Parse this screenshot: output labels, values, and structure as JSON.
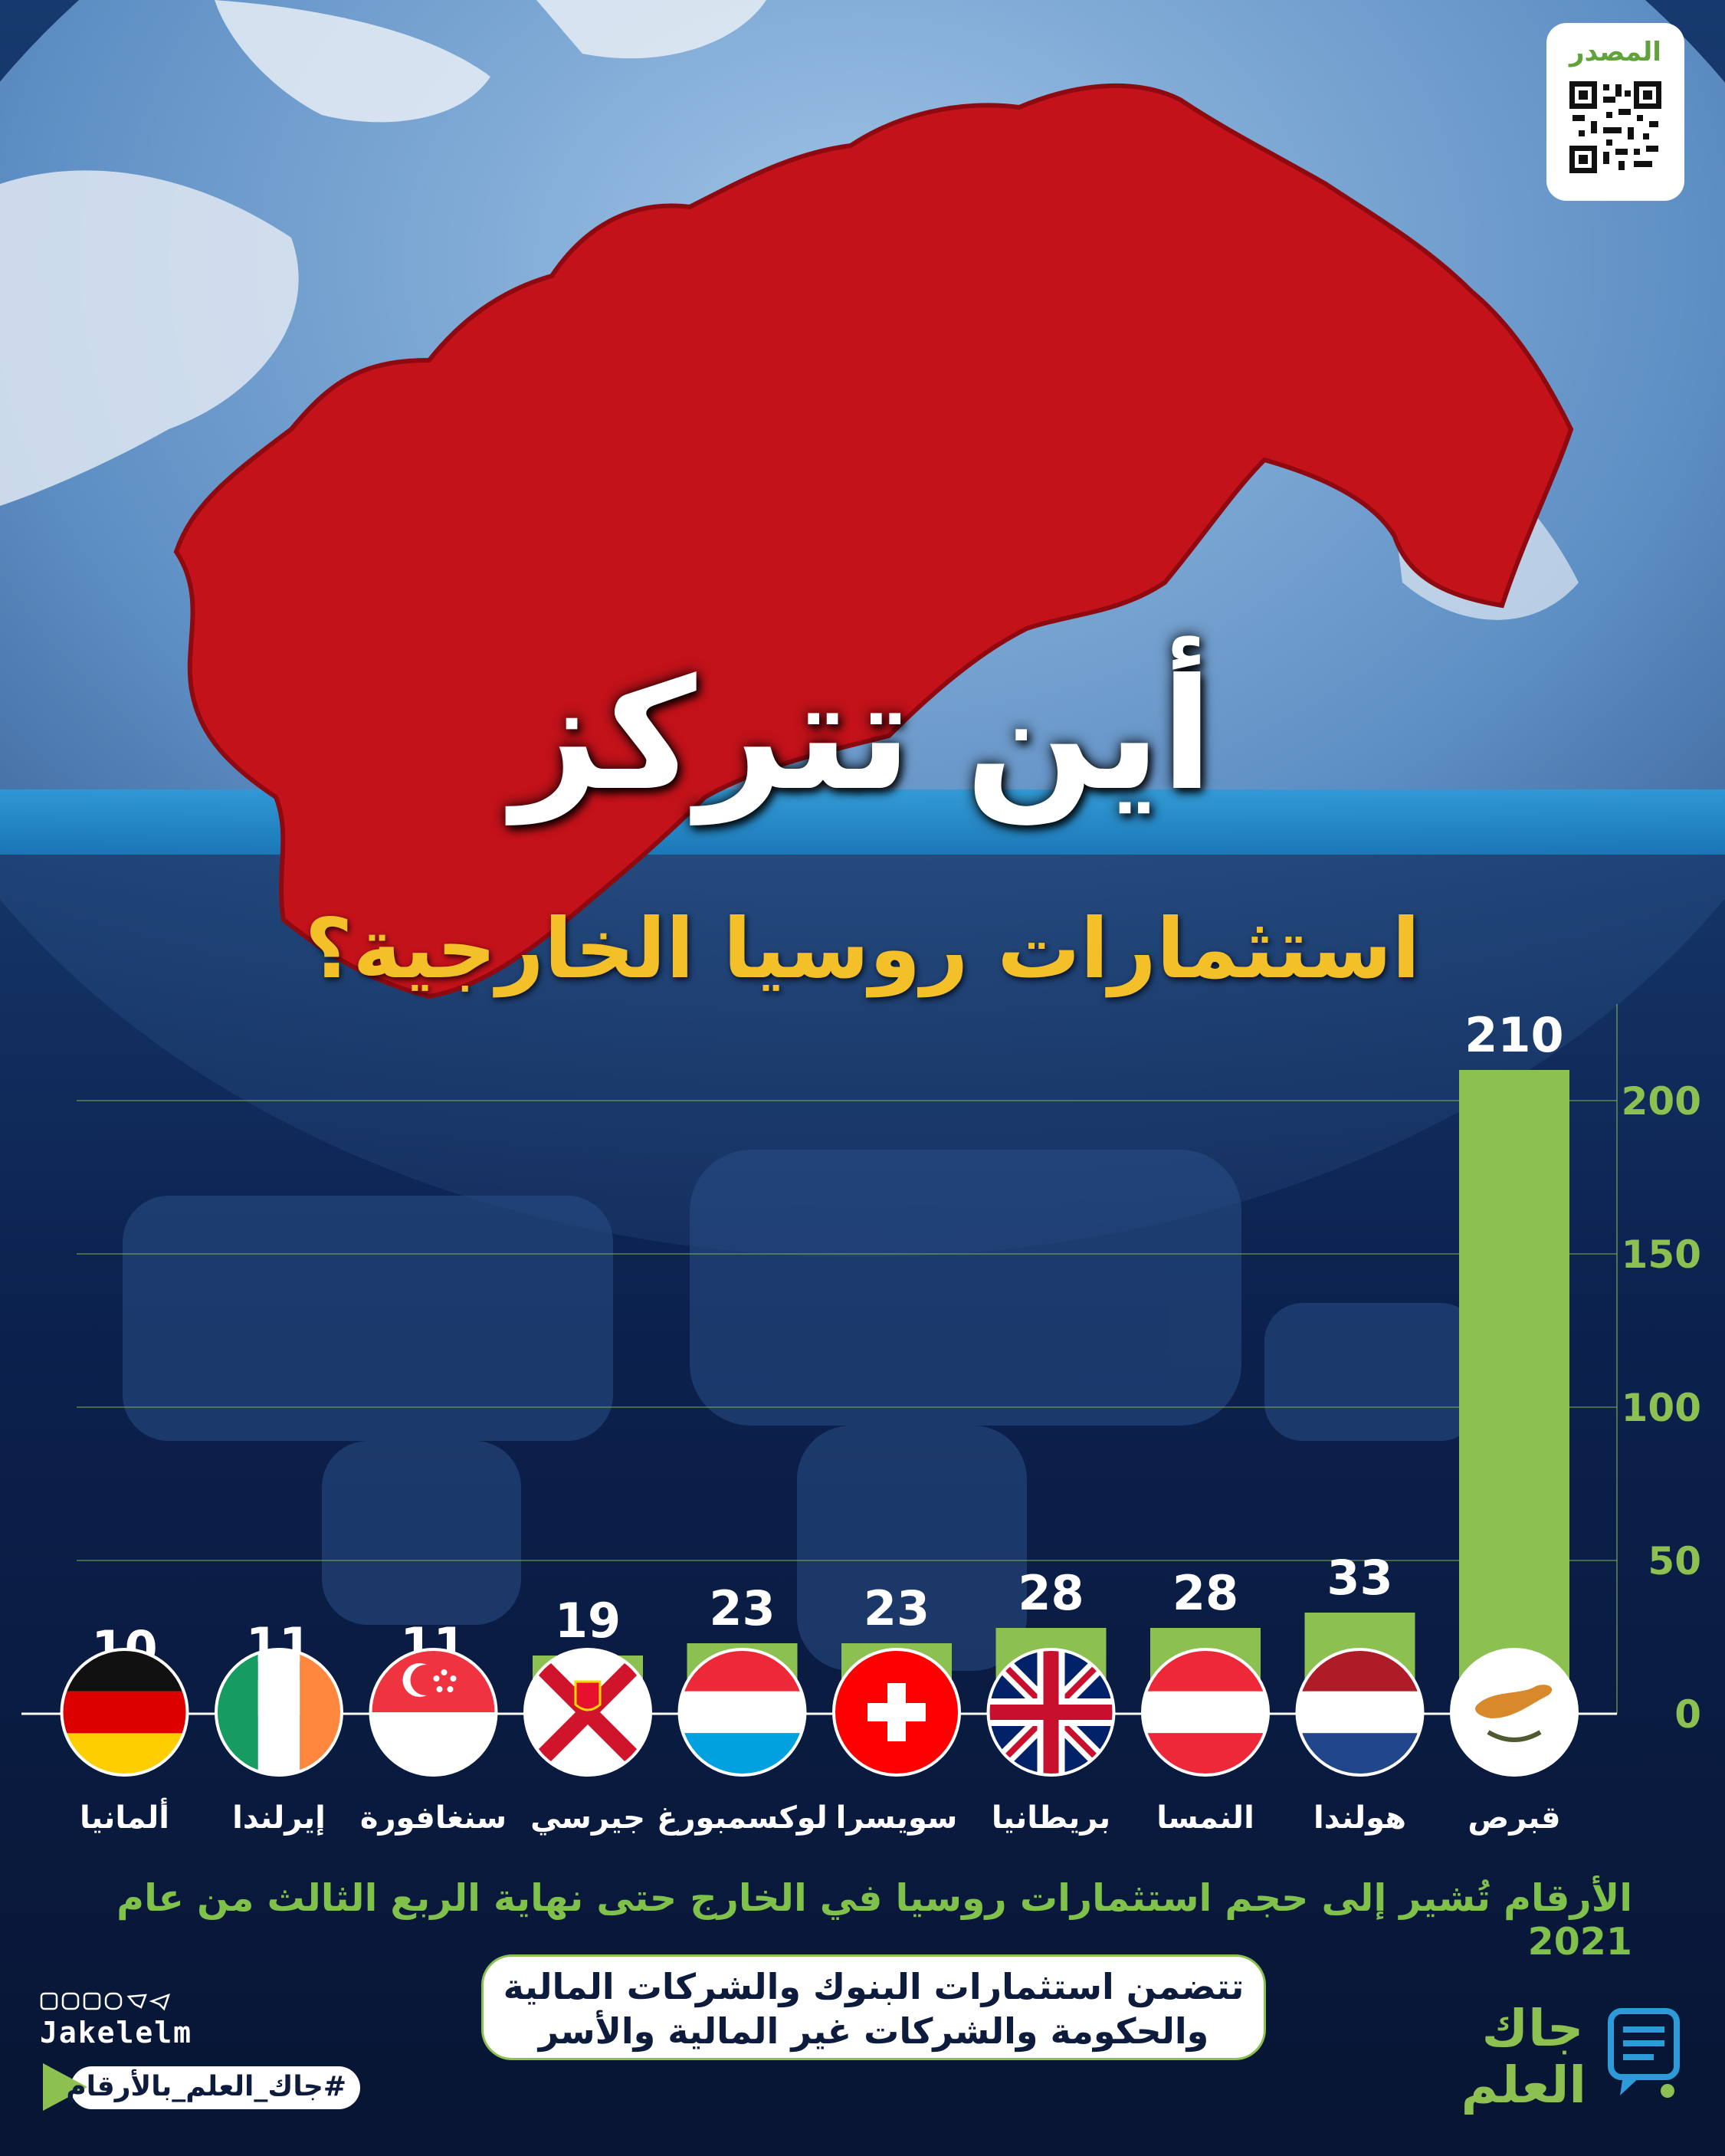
{
  "source": {
    "label": "المصدر"
  },
  "title": {
    "line1": "أين تتركز",
    "line2": "استثمارات روسيا الخارجية؟"
  },
  "chart_data": {
    "type": "bar",
    "categories": [
      "قبرص",
      "هولندا",
      "النمسا",
      "بريطانيا",
      "سويسرا",
      "لوكسمبورغ",
      "جيرسي",
      "سنغافورة",
      "إيرلندا",
      "ألمانيا"
    ],
    "values": [
      210,
      33,
      28,
      28,
      23,
      23,
      19,
      11,
      11,
      10
    ],
    "value_labels": [
      "210",
      "33",
      "28",
      "28",
      "23",
      "23",
      "19",
      "11",
      "11",
      "10"
    ],
    "y_ticks": [
      0,
      50,
      100,
      150,
      200
    ],
    "y_tick_labels": [
      "0",
      "50",
      "100",
      "150",
      "200"
    ],
    "ylim": [
      0,
      210
    ],
    "axis_position": "right",
    "grid": true,
    "bar_color": "#8cc152",
    "flags": [
      "cyprus",
      "netherlands",
      "austria",
      "united-kingdom",
      "switzerland",
      "luxembourg",
      "jersey",
      "singapore",
      "ireland",
      "germany"
    ]
  },
  "note": "الأرقام تُشير إلى حجم استثمارات روسيا في الخارج حتى نهاية الربع الثالث من عام 2021",
  "pill": {
    "line1": "تتضمن استثمارات البنوك والشركات المالية",
    "line2": "والحكومة والشركات غير المالية والأسر"
  },
  "footer": {
    "handle": "Jakelelm",
    "hashtag": "#جاك_العلم_بالأرقام",
    "brand_line1": "جاك",
    "brand_line2": "العلم"
  },
  "colors": {
    "accent_green": "#8cc152",
    "title_yellow": "#f4c02a",
    "russia_red": "#c4121a"
  }
}
